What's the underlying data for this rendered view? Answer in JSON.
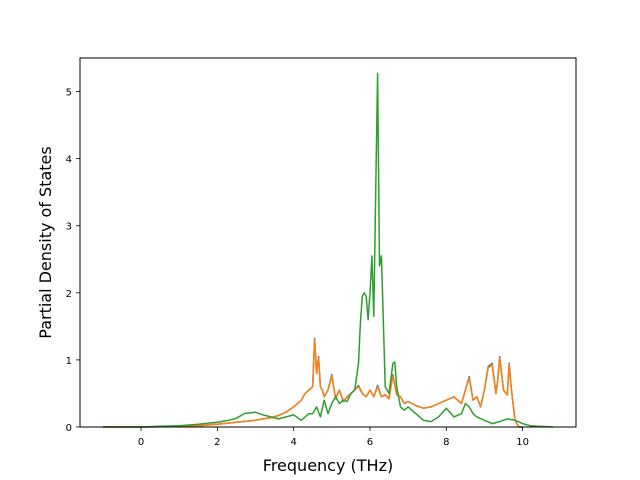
{
  "chart_data": {
    "type": "line",
    "title": "",
    "xlabel": "Frequency (THz)",
    "ylabel": "Partial Density of States",
    "xlim": [
      -1.6,
      11.4
    ],
    "ylim": [
      0,
      5.5
    ],
    "xticks": [
      0,
      2,
      4,
      6,
      8,
      10
    ],
    "yticks": [
      0,
      1,
      2,
      3,
      4,
      5
    ],
    "grid": false,
    "legend": "none",
    "series": [
      {
        "color": "#1f77b4",
        "x": [
          -1.0,
          0.0,
          0.5,
          1.0,
          1.5,
          2.0,
          2.5,
          3.0,
          3.2,
          3.4,
          3.6,
          3.8,
          4.0,
          4.2,
          4.3,
          4.4,
          4.5,
          4.55,
          4.6,
          4.65,
          4.7,
          4.75,
          4.8,
          4.9,
          5.0,
          5.1,
          5.2,
          5.3,
          5.4,
          5.5,
          5.6,
          5.7,
          5.8,
          5.9,
          6.0,
          6.1,
          6.2,
          6.3,
          6.4,
          6.5,
          6.6,
          6.7,
          6.8,
          6.9,
          7.0,
          7.2,
          7.4,
          7.6,
          7.8,
          8.0,
          8.2,
          8.4,
          8.5,
          8.6,
          8.7,
          8.8,
          8.9,
          9.0,
          9.1,
          9.2,
          9.3,
          9.35,
          9.4,
          9.5,
          9.6,
          9.65,
          9.7,
          9.8,
          9.9,
          10.0
        ],
        "y": [
          0.0,
          0.0,
          0.005,
          0.01,
          0.02,
          0.04,
          0.07,
          0.1,
          0.12,
          0.14,
          0.17,
          0.22,
          0.3,
          0.4,
          0.5,
          0.55,
          0.6,
          1.32,
          0.8,
          1.05,
          0.6,
          0.55,
          0.45,
          0.55,
          0.78,
          0.42,
          0.55,
          0.38,
          0.45,
          0.5,
          0.55,
          0.62,
          0.5,
          0.45,
          0.55,
          0.45,
          0.62,
          0.45,
          0.48,
          0.42,
          0.78,
          0.48,
          0.45,
          0.35,
          0.38,
          0.32,
          0.28,
          0.3,
          0.35,
          0.4,
          0.45,
          0.35,
          0.55,
          0.75,
          0.4,
          0.45,
          0.3,
          0.55,
          0.9,
          0.95,
          0.5,
          0.7,
          1.05,
          0.55,
          0.48,
          0.95,
          0.6,
          0.1,
          0.0,
          0.0
        ]
      },
      {
        "color": "#ff7f0e",
        "x": [
          -1.0,
          0.0,
          0.5,
          1.0,
          1.5,
          2.0,
          2.5,
          3.0,
          3.2,
          3.4,
          3.6,
          3.8,
          4.0,
          4.2,
          4.3,
          4.4,
          4.5,
          4.55,
          4.6,
          4.65,
          4.7,
          4.75,
          4.8,
          4.9,
          5.0,
          5.1,
          5.2,
          5.3,
          5.4,
          5.5,
          5.6,
          5.7,
          5.8,
          5.9,
          6.0,
          6.1,
          6.2,
          6.3,
          6.4,
          6.5,
          6.6,
          6.7,
          6.8,
          6.9,
          7.0,
          7.2,
          7.4,
          7.6,
          7.8,
          8.0,
          8.2,
          8.4,
          8.5,
          8.6,
          8.7,
          8.8,
          8.9,
          9.0,
          9.1,
          9.2,
          9.3,
          9.35,
          9.4,
          9.5,
          9.6,
          9.65,
          9.7,
          9.8,
          9.9,
          10.0
        ],
        "y": [
          0.0,
          0.0,
          0.005,
          0.01,
          0.02,
          0.04,
          0.07,
          0.1,
          0.12,
          0.14,
          0.17,
          0.22,
          0.3,
          0.4,
          0.5,
          0.55,
          0.6,
          1.3,
          0.8,
          1.03,
          0.6,
          0.55,
          0.45,
          0.55,
          0.76,
          0.42,
          0.55,
          0.38,
          0.45,
          0.5,
          0.55,
          0.6,
          0.5,
          0.45,
          0.55,
          0.45,
          0.6,
          0.45,
          0.48,
          0.42,
          0.76,
          0.48,
          0.45,
          0.35,
          0.38,
          0.32,
          0.28,
          0.3,
          0.35,
          0.4,
          0.45,
          0.35,
          0.55,
          0.73,
          0.4,
          0.45,
          0.3,
          0.55,
          0.88,
          0.93,
          0.5,
          0.7,
          1.03,
          0.55,
          0.48,
          0.93,
          0.6,
          0.1,
          0.0,
          0.0
        ]
      },
      {
        "color": "#2ca02c",
        "x": [
          -1.0,
          0.0,
          0.5,
          1.0,
          1.5,
          2.0,
          2.3,
          2.5,
          2.7,
          3.0,
          3.2,
          3.4,
          3.6,
          3.8,
          4.0,
          4.2,
          4.4,
          4.5,
          4.6,
          4.7,
          4.8,
          4.9,
          5.0,
          5.1,
          5.2,
          5.3,
          5.4,
          5.5,
          5.6,
          5.7,
          5.75,
          5.8,
          5.85,
          5.9,
          5.95,
          6.0,
          6.05,
          6.1,
          6.15,
          6.2,
          6.25,
          6.3,
          6.35,
          6.4,
          6.5,
          6.6,
          6.65,
          6.7,
          6.8,
          6.9,
          7.0,
          7.2,
          7.4,
          7.6,
          7.8,
          8.0,
          8.2,
          8.4,
          8.5,
          8.6,
          8.7,
          8.8,
          9.0,
          9.2,
          9.4,
          9.6,
          9.8,
          10.0,
          10.2,
          10.4,
          10.8
        ],
        "y": [
          0.0,
          0.0,
          0.01,
          0.02,
          0.04,
          0.07,
          0.1,
          0.13,
          0.2,
          0.22,
          0.18,
          0.15,
          0.12,
          0.15,
          0.18,
          0.1,
          0.2,
          0.2,
          0.3,
          0.15,
          0.4,
          0.2,
          0.35,
          0.45,
          0.35,
          0.4,
          0.38,
          0.5,
          0.55,
          0.95,
          1.55,
          1.95,
          2.0,
          1.95,
          1.6,
          2.0,
          2.55,
          1.65,
          3.5,
          5.27,
          2.4,
          2.55,
          1.6,
          0.6,
          0.5,
          0.95,
          0.97,
          0.6,
          0.3,
          0.25,
          0.3,
          0.2,
          0.1,
          0.08,
          0.15,
          0.28,
          0.15,
          0.2,
          0.35,
          0.3,
          0.2,
          0.15,
          0.1,
          0.05,
          0.08,
          0.12,
          0.1,
          0.05,
          0.02,
          0.01,
          0.0
        ]
      }
    ]
  }
}
